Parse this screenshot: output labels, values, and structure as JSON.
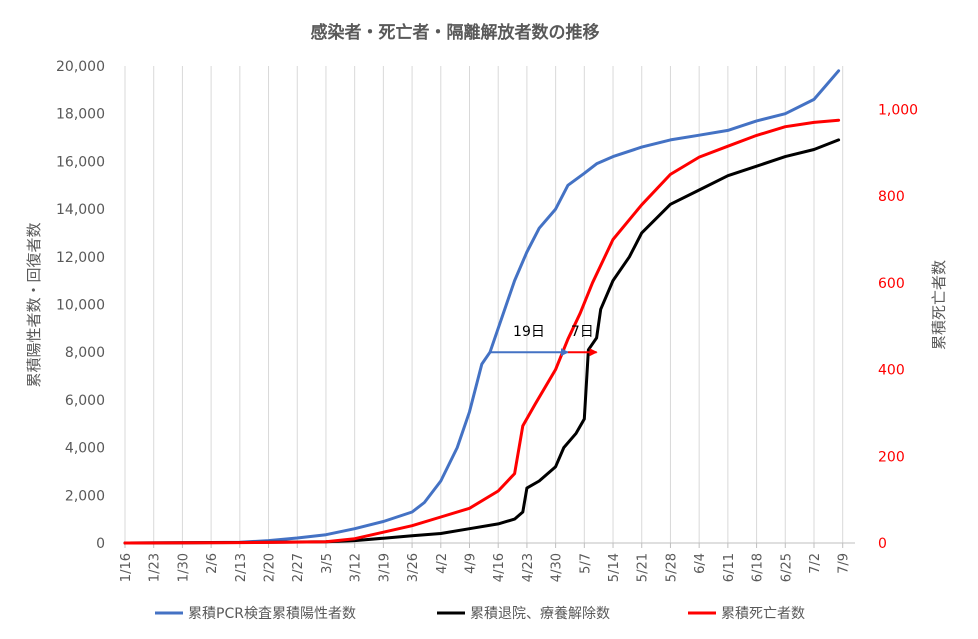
{
  "chart_data": {
    "type": "line",
    "title": "感染者・死亡者・隔離解放者数の推移",
    "ylabel_left": "累積陽性者数・回復者数",
    "ylabel_right": "累積死亡者数",
    "ylim_left": [
      0,
      20000
    ],
    "ylim_right": [
      0,
      1100
    ],
    "yticks_left": [
      "0",
      "2,000",
      "4,000",
      "6,000",
      "8,000",
      "10,000",
      "12,000",
      "14,000",
      "16,000",
      "18,000",
      "20,000"
    ],
    "yticks_right": [
      "0",
      "200",
      "400",
      "600",
      "800",
      "1,000"
    ],
    "x_tick_labels": [
      "1/16",
      "1/23",
      "1/30",
      "2/6",
      "2/13",
      "2/20",
      "2/27",
      "3/5",
      "3/12",
      "3/19",
      "3/26",
      "4/2",
      "4/9",
      "4/16",
      "4/23",
      "4/30",
      "5/7",
      "5/14",
      "5/21",
      "5/28",
      "6/4",
      "6/11",
      "6/18",
      "6/25",
      "7/2",
      "7/9"
    ],
    "x_axis": {
      "start": "1/16",
      "end": "7/12",
      "unit": "day"
    },
    "grid": "vertical",
    "legend_position": "bottom",
    "series": [
      {
        "name": "累積PCR検査累積陽性者数",
        "axis": "left",
        "color": "#4472c4",
        "points": [
          [
            "1/16",
            0
          ],
          [
            "1/30",
            10
          ],
          [
            "2/6",
            20
          ],
          [
            "2/13",
            30
          ],
          [
            "2/20",
            100
          ],
          [
            "2/27",
            210
          ],
          [
            "3/5",
            350
          ],
          [
            "3/12",
            600
          ],
          [
            "3/19",
            900
          ],
          [
            "3/26",
            1300
          ],
          [
            "3/29",
            1700
          ],
          [
            "4/2",
            2600
          ],
          [
            "4/6",
            4000
          ],
          [
            "4/9",
            5500
          ],
          [
            "4/12",
            7500
          ],
          [
            "4/14",
            8000
          ],
          [
            "4/17",
            9500
          ],
          [
            "4/20",
            11000
          ],
          [
            "4/23",
            12200
          ],
          [
            "4/26",
            13200
          ],
          [
            "4/30",
            14000
          ],
          [
            "5/3",
            15000
          ],
          [
            "5/7",
            15500
          ],
          [
            "5/10",
            15900
          ],
          [
            "5/14",
            16200
          ],
          [
            "5/21",
            16600
          ],
          [
            "5/28",
            16900
          ],
          [
            "6/4",
            17100
          ],
          [
            "6/11",
            17300
          ],
          [
            "6/18",
            17700
          ],
          [
            "6/25",
            18000
          ],
          [
            "7/2",
            18600
          ],
          [
            "7/5",
            19200
          ],
          [
            "7/8",
            19800
          ]
        ]
      },
      {
        "name": "累積退院、療養解除数",
        "axis": "left",
        "color": "#000000",
        "points": [
          [
            "1/16",
            0
          ],
          [
            "1/30",
            10
          ],
          [
            "2/13",
            20
          ],
          [
            "2/20",
            30
          ],
          [
            "2/27",
            40
          ],
          [
            "3/5",
            50
          ],
          [
            "3/12",
            100
          ],
          [
            "3/19",
            200
          ],
          [
            "3/26",
            300
          ],
          [
            "4/2",
            400
          ],
          [
            "4/9",
            600
          ],
          [
            "4/16",
            800
          ],
          [
            "4/20",
            1000
          ],
          [
            "4/22",
            1300
          ],
          [
            "4/23",
            2300
          ],
          [
            "4/26",
            2600
          ],
          [
            "4/30",
            3200
          ],
          [
            "5/2",
            4000
          ],
          [
            "5/5",
            4600
          ],
          [
            "5/7",
            5200
          ],
          [
            "5/8",
            8100
          ],
          [
            "5/10",
            8600
          ],
          [
            "5/11",
            9800
          ],
          [
            "5/14",
            11000
          ],
          [
            "5/18",
            12000
          ],
          [
            "5/21",
            13000
          ],
          [
            "5/28",
            14200
          ],
          [
            "6/4",
            14800
          ],
          [
            "6/11",
            15400
          ],
          [
            "6/18",
            15800
          ],
          [
            "6/25",
            16200
          ],
          [
            "7/2",
            16500
          ],
          [
            "7/8",
            16900
          ]
        ]
      },
      {
        "name": "累積死亡者数",
        "axis": "right",
        "color": "#ff0000",
        "points": [
          [
            "1/16",
            0
          ],
          [
            "2/13",
            1
          ],
          [
            "2/27",
            2
          ],
          [
            "3/5",
            3
          ],
          [
            "3/12",
            10
          ],
          [
            "3/19",
            25
          ],
          [
            "3/26",
            40
          ],
          [
            "4/2",
            60
          ],
          [
            "4/9",
            80
          ],
          [
            "4/16",
            120
          ],
          [
            "4/20",
            160
          ],
          [
            "4/22",
            270
          ],
          [
            "4/25",
            320
          ],
          [
            "4/30",
            400
          ],
          [
            "5/3",
            470
          ],
          [
            "5/6",
            530
          ],
          [
            "5/9",
            600
          ],
          [
            "5/14",
            700
          ],
          [
            "5/21",
            780
          ],
          [
            "5/28",
            850
          ],
          [
            "6/4",
            890
          ],
          [
            "6/11",
            915
          ],
          [
            "6/18",
            940
          ],
          [
            "6/25",
            960
          ],
          [
            "7/2",
            970
          ],
          [
            "7/8",
            975
          ]
        ]
      }
    ],
    "annotations": [
      {
        "label": "19日",
        "from": [
          "4/14",
          8000
        ],
        "to": [
          "5/3",
          8000
        ],
        "color": "#4472c4"
      },
      {
        "label": "7日",
        "from": [
          "5/3",
          8000
        ],
        "to": [
          "5/10",
          8000
        ],
        "color": "#ff0000"
      }
    ]
  }
}
